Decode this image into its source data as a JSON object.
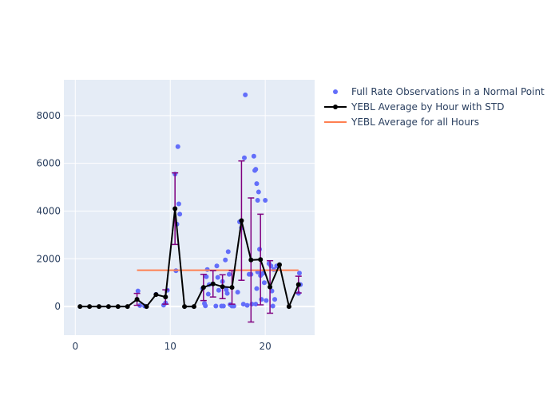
{
  "chart_data": {
    "type": "scatter",
    "title": "",
    "xlabel": "",
    "ylabel": "",
    "xlim": [
      -1.2,
      25.2
    ],
    "ylim": [
      -1200,
      9500
    ],
    "x_ticks": [
      0,
      10,
      20
    ],
    "y_ticks": [
      0,
      2000,
      4000,
      6000,
      8000
    ],
    "x_tick_labels": [
      "0",
      "10",
      "20"
    ],
    "y_tick_labels": [
      "0",
      "2000",
      "4000",
      "6000",
      "8000"
    ],
    "grid": true,
    "legend_position": "top-right",
    "colors": {
      "plot_bg": "#e5ecf6",
      "grid": "#ffffff",
      "scatter": "#636efa",
      "line": "#000000",
      "error_bar": "#800080",
      "overall": "#ff7f50",
      "text": "#2a3f5f"
    },
    "series": [
      {
        "name": "Full Rate Observations in a Normal Point",
        "mode": "markers",
        "points": [
          [
            6.6,
            650
          ],
          [
            6.8,
            40
          ],
          [
            7.3,
            20
          ],
          [
            8.5,
            510
          ],
          [
            9.3,
            60
          ],
          [
            9.5,
            150
          ],
          [
            9.7,
            680
          ],
          [
            10.5,
            5550
          ],
          [
            10.6,
            1500
          ],
          [
            10.8,
            6700
          ],
          [
            10.9,
            4300
          ],
          [
            11.0,
            3870
          ],
          [
            10.7,
            3450
          ],
          [
            13.4,
            750
          ],
          [
            13.6,
            130
          ],
          [
            13.7,
            30
          ],
          [
            13.8,
            1250
          ],
          [
            13.9,
            1550
          ],
          [
            14.1,
            920
          ],
          [
            14.0,
            520
          ],
          [
            14.8,
            20
          ],
          [
            14.9,
            1700
          ],
          [
            15.0,
            1220
          ],
          [
            15.1,
            680
          ],
          [
            15.4,
            20
          ],
          [
            15.6,
            20
          ],
          [
            15.5,
            1050
          ],
          [
            15.8,
            1950
          ],
          [
            15.9,
            700
          ],
          [
            16.0,
            550
          ],
          [
            16.1,
            2300
          ],
          [
            16.2,
            1350
          ],
          [
            16.3,
            80
          ],
          [
            16.5,
            20
          ],
          [
            17.1,
            600
          ],
          [
            17.3,
            3550
          ],
          [
            17.5,
            3300
          ],
          [
            17.7,
            100
          ],
          [
            17.9,
            8870
          ],
          [
            17.8,
            6230
          ],
          [
            18.1,
            50
          ],
          [
            18.5,
            1350
          ],
          [
            18.6,
            100
          ],
          [
            18.8,
            6300
          ],
          [
            18.9,
            5700
          ],
          [
            19.0,
            5750
          ],
          [
            19.1,
            5150
          ],
          [
            19.3,
            4800
          ],
          [
            19.2,
            4450
          ],
          [
            19.4,
            2400
          ],
          [
            19.1,
            750
          ],
          [
            19.2,
            1450
          ],
          [
            19.5,
            1300
          ],
          [
            19.6,
            1350
          ],
          [
            19.8,
            1400
          ],
          [
            19.6,
            300
          ],
          [
            19.9,
            1000
          ],
          [
            20.0,
            4450
          ],
          [
            20.1,
            250
          ],
          [
            20.4,
            1800
          ],
          [
            20.6,
            1700
          ],
          [
            20.7,
            650
          ],
          [
            20.8,
            20
          ],
          [
            20.9,
            1550
          ],
          [
            21.0,
            300
          ],
          [
            21.2,
            1700
          ],
          [
            19.0,
            100
          ],
          [
            18.3,
            1350
          ],
          [
            16.7,
            20
          ],
          [
            23.6,
            1400
          ],
          [
            23.5,
            550
          ],
          [
            23.7,
            920
          ]
        ]
      },
      {
        "name": "YEBL Average by Hour with STD",
        "mode": "lines+markers+error_y",
        "x": [
          0.5,
          1.5,
          2.5,
          3.5,
          4.5,
          5.5,
          6.5,
          7.5,
          8.5,
          9.5,
          10.5,
          11.5,
          12.5,
          13.5,
          14.5,
          15.5,
          16.5,
          17.5,
          18.5,
          19.5,
          20.5,
          21.5,
          22.5,
          23.5
        ],
        "y": [
          0,
          0,
          0,
          0,
          0,
          0,
          300,
          0,
          500,
          400,
          4100,
          0,
          0,
          800,
          950,
          830,
          800,
          3600,
          1950,
          1970,
          820,
          1750,
          0,
          920
        ],
        "error": [
          0,
          0,
          0,
          0,
          0,
          0,
          250,
          0,
          0,
          300,
          1500,
          0,
          0,
          550,
          550,
          500,
          700,
          2500,
          2600,
          1900,
          1100,
          0,
          0,
          350
        ]
      },
      {
        "name": "YEBL Average for all Hours",
        "mode": "lines",
        "x": [
          6.5,
          23.5
        ],
        "y": [
          1520,
          1520
        ]
      }
    ]
  }
}
